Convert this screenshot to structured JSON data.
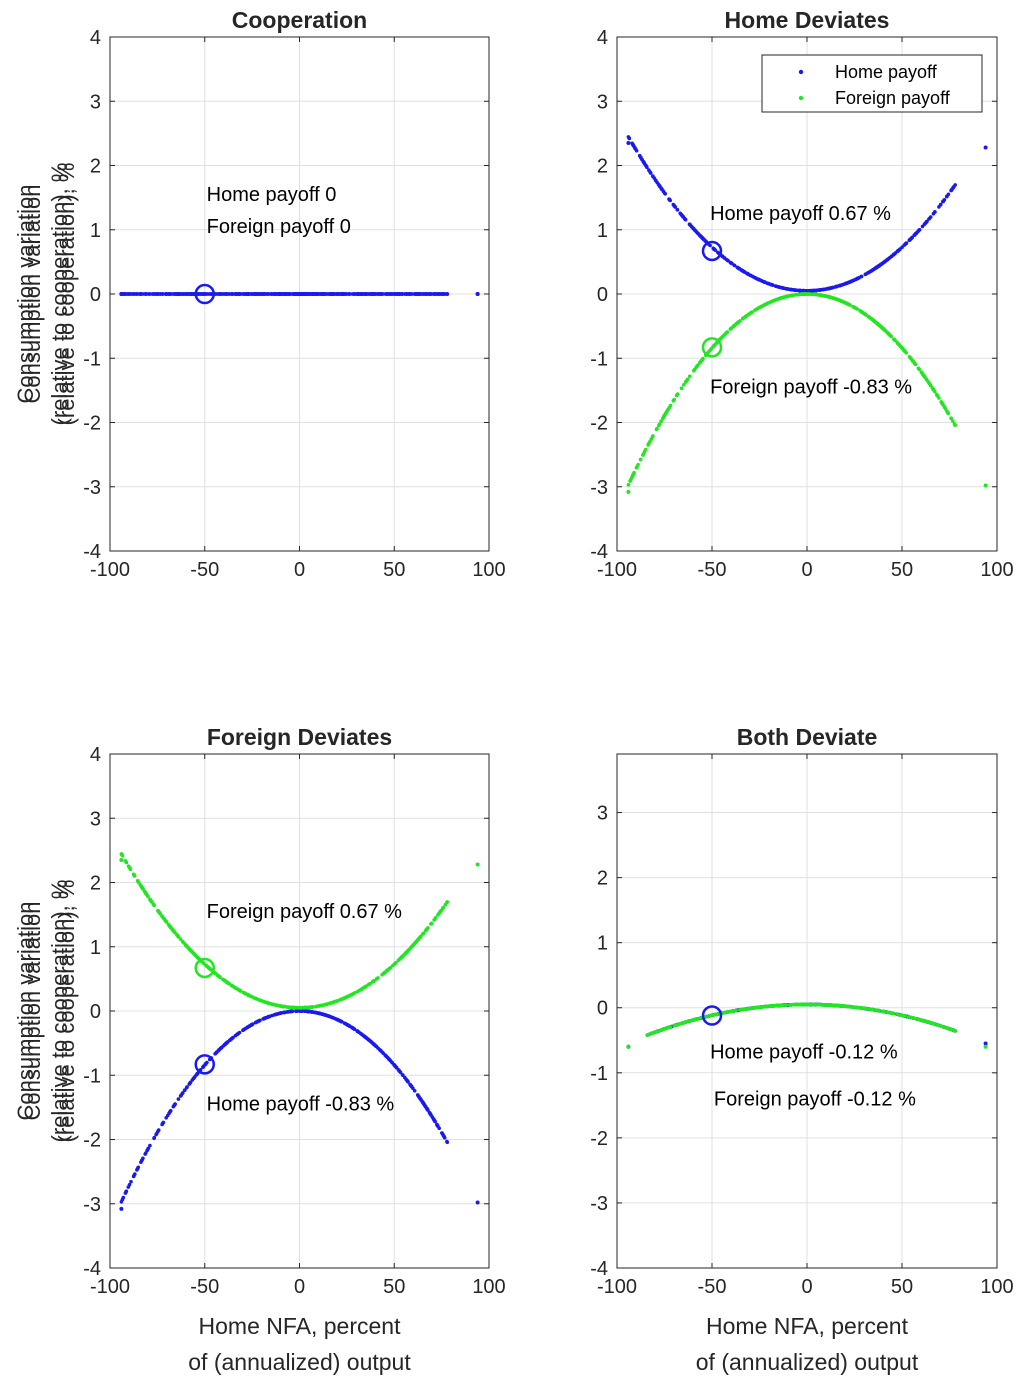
{
  "chart_data": [
    {
      "type": "scatter",
      "title": "Cooperation",
      "xlabel": "",
      "ylabel": [
        "Consumption variation",
        "(relative to cooperation), %"
      ],
      "xlim": [
        -100,
        100
      ],
      "ylim": [
        -4,
        4
      ],
      "xticks": [
        -100,
        -50,
        0,
        50,
        100
      ],
      "yticks": [
        -4,
        -3,
        -2,
        -1,
        0,
        1,
        2,
        3,
        4
      ],
      "grid": true,
      "x_range": [
        -94,
        78
      ],
      "outliers_x": [
        -94,
        94
      ],
      "series": [
        {
          "color": "#1a1af0",
          "shape": "flat",
          "level": 0
        },
        {
          "color": "#1a1af0",
          "shape": "flat",
          "level": 0
        }
      ],
      "marker": {
        "x": -50,
        "y": [
          0
        ],
        "color": "#1a1af0"
      },
      "annotations": [
        {
          "text": "Home payoff 0",
          "x": -49,
          "y": 1.45
        },
        {
          "text": "Foreign payoff 0",
          "x": -49,
          "y": 0.95
        }
      ]
    },
    {
      "type": "scatter",
      "title": "Home Deviates",
      "xlabel": "",
      "ylabel": [
        "Consumption variation",
        "(relative to cooperation), %"
      ],
      "xlim": [
        -100,
        100
      ],
      "ylim": [
        -4,
        4
      ],
      "xticks": [
        -100,
        -50,
        0,
        50,
        100
      ],
      "yticks": [
        -4,
        -3,
        -2,
        -1,
        0,
        1,
        2,
        3,
        4
      ],
      "grid": true,
      "legend": {
        "position": "top-right",
        "entries": [
          "Home payoff",
          "Foreign payoff"
        ]
      },
      "x_range": [
        -94,
        78
      ],
      "outliers_x": [
        -94,
        94
      ],
      "series": [
        {
          "name": "Home payoff",
          "color": "#1a1af0",
          "shape": "up",
          "vertex": 0.05,
          "curvature": 0.000271,
          "outlier_y": [
            2.35,
            2.28
          ]
        },
        {
          "name": "Foreign payoff",
          "color": "#22e622",
          "shape": "down",
          "vertex": 0.0,
          "curvature": 0.000336,
          "outlier_y": [
            -3.08,
            -2.98
          ]
        }
      ],
      "marker": {
        "x": -50,
        "y": [
          0.67,
          -0.83
        ]
      },
      "annotations": [
        {
          "text": "Home payoff 0.67 %",
          "x": -51,
          "y": 1.15
        },
        {
          "text": "Foreign payoff -0.83 %",
          "x": -51,
          "y": -1.55
        }
      ]
    },
    {
      "type": "scatter",
      "title": "Foreign Deviates",
      "xlabel": [
        "Home NFA, percent",
        "of (annualized) output"
      ],
      "ylabel": [
        "Consumption variation",
        "(relative to cooperation), %"
      ],
      "xlim": [
        -100,
        100
      ],
      "ylim": [
        -4,
        4
      ],
      "xticks": [
        -100,
        -50,
        0,
        50,
        100
      ],
      "yticks": [
        -4,
        -3,
        -2,
        -1,
        0,
        1,
        2,
        3,
        4
      ],
      "grid": true,
      "x_range": [
        -94,
        78
      ],
      "outliers_x": [
        -94,
        94
      ],
      "series": [
        {
          "color": "#1a1af0",
          "shape": "down",
          "vertex": 0.0,
          "curvature": 0.000336,
          "outlier_y": [
            -3.08,
            -2.98
          ]
        },
        {
          "color": "#22e622",
          "shape": "up",
          "vertex": 0.05,
          "curvature": 0.000271,
          "outlier_y": [
            2.35,
            2.28
          ]
        }
      ],
      "marker": {
        "x": -50,
        "y": [
          -0.83,
          0.67
        ]
      },
      "annotations": [
        {
          "text": "Foreign payoff 0.67 %",
          "x": -49,
          "y": 1.45
        },
        {
          "text": "Home payoff -0.83 %",
          "x": -49,
          "y": -1.55
        }
      ]
    },
    {
      "type": "scatter",
      "title": "Both Deviate",
      "xlabel": [
        "Home NFA, percent",
        "of (annualized) output"
      ],
      "ylabel": [
        "Consumption variation",
        "(relative to cooperation), %"
      ],
      "xlim": [
        -100,
        100
      ],
      "ylim": [
        -4,
        3.9
      ],
      "xticks": [
        -100,
        -50,
        0,
        50,
        100
      ],
      "yticks": [
        -4,
        -3,
        -2,
        -1,
        0,
        1,
        2,
        3
      ],
      "grid": true,
      "x_range": [
        -84,
        78
      ],
      "outliers_x": [
        -94,
        94
      ],
      "series": [
        {
          "color": "#1a1af0",
          "shape": "down",
          "vertex": 0.05,
          "curvature": 6.66e-05,
          "outlier_y": [
            -0.6,
            -0.55
          ]
        },
        {
          "color": "#22e622",
          "shape": "down",
          "vertex": 0.05,
          "curvature": 6.66e-05,
          "outlier_y": [
            -0.6,
            -0.6
          ]
        }
      ],
      "marker": {
        "x": -50,
        "y": [
          -0.12
        ]
      },
      "annotations": [
        {
          "text": "Home payoff -0.12 %",
          "x": -51,
          "y": -0.78
        },
        {
          "text": "Foreign payoff -0.12 %",
          "x": -49,
          "y": -1.5
        }
      ]
    }
  ]
}
